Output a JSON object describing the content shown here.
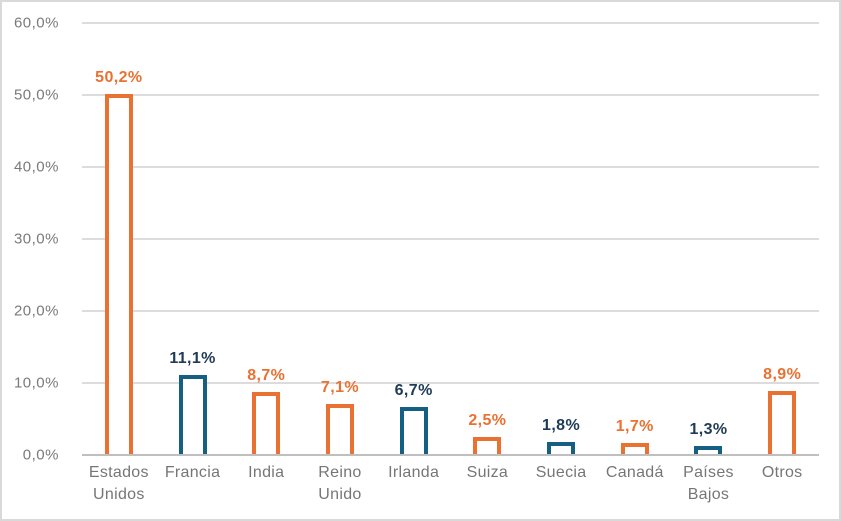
{
  "chart_data": {
    "type": "bar",
    "title": "",
    "xlabel": "",
    "ylabel": "",
    "categories": [
      "Estados Unidos",
      "Francia",
      "India",
      "Reino Unido",
      "Irlanda",
      "Suiza",
      "Suecia",
      "Canadá",
      "Países Bajos",
      "Otros"
    ],
    "values": [
      50.2,
      11.1,
      8.7,
      7.1,
      6.7,
      2.5,
      1.8,
      1.7,
      1.3,
      8.9
    ],
    "value_labels": [
      "50,2%",
      "11,1%",
      "8,7%",
      "7,1%",
      "6,7%",
      "2,5%",
      "1,8%",
      "1,7%",
      "1,3%",
      "8,9%"
    ],
    "bar_colors": [
      "#E97132",
      "#156082",
      "#E97132",
      "#E97132",
      "#156082",
      "#E97132",
      "#156082",
      "#E97132",
      "#156082",
      "#E97132"
    ],
    "label_colors": [
      "#E97132",
      "#1F3B57",
      "#E97132",
      "#E97132",
      "#1F3B57",
      "#E97132",
      "#1F3B57",
      "#E97132",
      "#1F3B57",
      "#E97132"
    ],
    "yticks": [
      {
        "label": "0,0%",
        "value": 0
      },
      {
        "label": "10,0%",
        "value": 10
      },
      {
        "label": "20,0%",
        "value": 20
      },
      {
        "label": "30,0%",
        "value": 30
      },
      {
        "label": "40,0%",
        "value": 40
      },
      {
        "label": "50,0%",
        "value": 50
      },
      {
        "label": "60,0%",
        "value": 60
      }
    ],
    "ylim": [
      0,
      60
    ],
    "grid": true,
    "legend": false,
    "bar_style": "outlined-hollow",
    "colors": {
      "accent_orange": "#E97132",
      "accent_blue": "#156082",
      "gridline": "#DCDCDC",
      "axis_line": "#BFBFBF",
      "tick_text": "#7A7A7A",
      "category_text": "#767676",
      "frame_border": "#D9D9D9"
    }
  }
}
